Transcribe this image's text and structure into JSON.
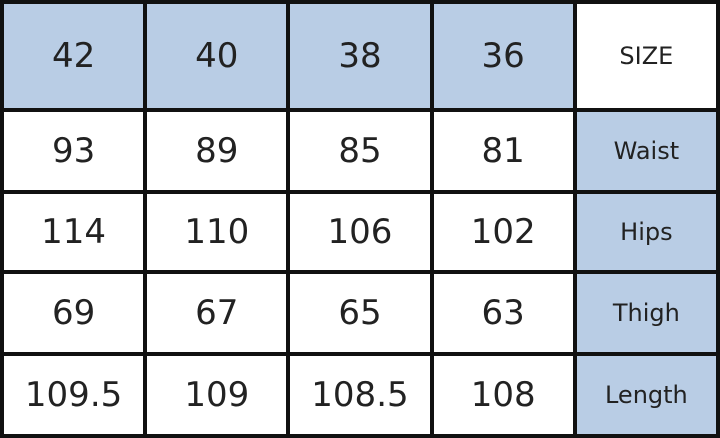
{
  "table": {
    "header": {
      "sizes": [
        "42",
        "40",
        "38",
        "36"
      ],
      "label": "SIZE"
    },
    "rows": [
      {
        "values": [
          "93",
          "89",
          "85",
          "81"
        ],
        "label": "Waist"
      },
      {
        "values": [
          "114",
          "110",
          "106",
          "102"
        ],
        "label": "Hips"
      },
      {
        "values": [
          "69",
          "67",
          "65",
          "63"
        ],
        "label": "Thigh"
      },
      {
        "values": [
          "109.5",
          "109",
          "108.5",
          "108"
        ],
        "label": "Length"
      }
    ]
  },
  "colors": {
    "header_fill": "#b9cde5",
    "border": "#111111",
    "text": "#222222"
  }
}
